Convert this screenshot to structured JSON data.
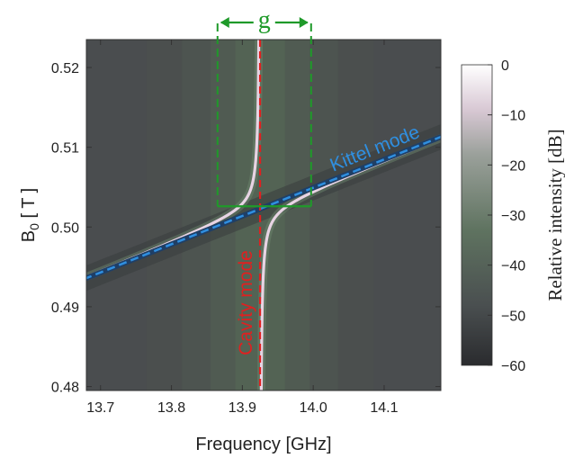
{
  "chart_data": {
    "type": "heatmap",
    "title": "",
    "xlabel": "Frequency [GHz]",
    "ylabel": "B",
    "ylabel_sub": "0",
    "ylabel_unit": " [ T ]",
    "xlim": [
      13.68,
      14.18
    ],
    "ylim": [
      0.4795,
      0.5235
    ],
    "xticks": [
      13.7,
      13.8,
      13.9,
      14.0,
      14.1
    ],
    "xtick_labels": [
      "13.7",
      "13.8",
      "13.9",
      "14.0",
      "14.1"
    ],
    "yticks": [
      0.48,
      0.49,
      0.5,
      0.51,
      0.52
    ],
    "ytick_labels": [
      "0.48",
      "0.49",
      "0.50",
      "0.51",
      "0.52"
    ],
    "colorbar": {
      "label": "Relative intensity [dB]",
      "range": [
        -60,
        0
      ],
      "ticks": [
        0,
        -10,
        -20,
        -30,
        -40,
        -50,
        -60
      ],
      "tick_labels": [
        "0",
        "−10",
        "−20",
        "−30",
        "−40",
        "−50",
        "−60"
      ]
    },
    "model": {
      "cavity_frequency": 13.925,
      "kittel_line": {
        "f_at_b_low": 13.7,
        "b_low": 0.4943,
        "f_at_b_high": 14.18,
        "b_high": 0.5113
      },
      "anticrossing_field": 0.5026,
      "coupling_box_frequencies": [
        13.865,
        13.997
      ]
    },
    "annotations": {
      "kittel_label": "Kittel mode",
      "cavity_label": "Cavity mode",
      "coupling_label": "g"
    },
    "colors": {
      "kittel": "#2f8fe0",
      "cavity": "#e02020",
      "coupling": "#1f9a2a",
      "background": "#4a4d4f"
    }
  }
}
